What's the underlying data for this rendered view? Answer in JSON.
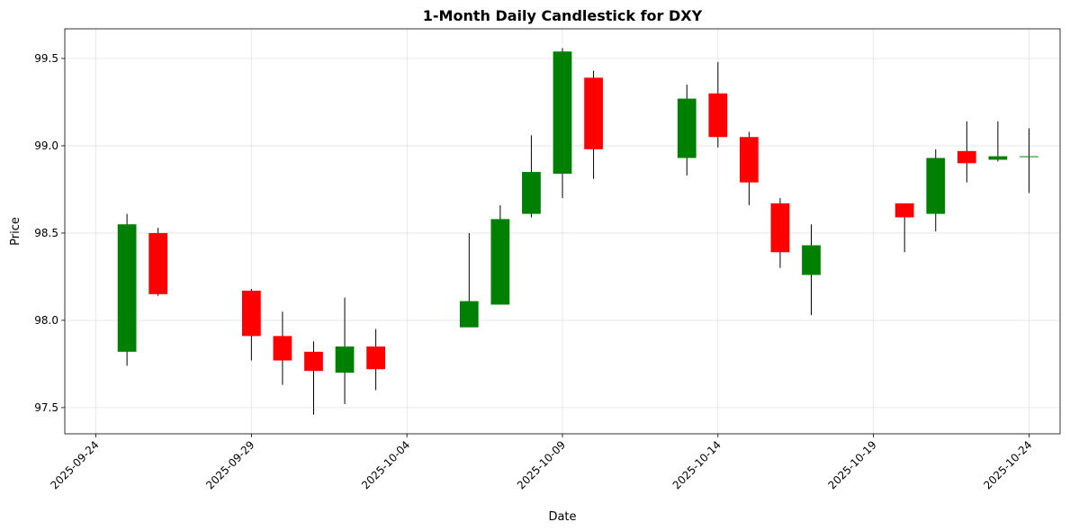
{
  "chart_data": {
    "type": "candlestick",
    "title": "1-Month Daily Candlestick for DXY",
    "xlabel": "Date",
    "ylabel": "Price",
    "grid": true,
    "up_color": "#008000",
    "down_color": "#ff0000",
    "wick_color": "#000000",
    "x_range": [
      "2025-09-23",
      "2025-10-25"
    ],
    "ylim": [
      97.35,
      99.67
    ],
    "xticks": [
      "2025-09-24",
      "2025-09-29",
      "2025-10-04",
      "2025-10-09",
      "2025-10-14",
      "2025-10-19",
      "2025-10-24"
    ],
    "yticks": [
      97.5,
      98.0,
      98.5,
      99.0,
      99.5
    ],
    "candles": [
      {
        "date": "2025-09-25",
        "open": 97.82,
        "high": 98.61,
        "low": 97.74,
        "close": 98.55
      },
      {
        "date": "2025-09-26",
        "open": 98.5,
        "high": 98.53,
        "low": 98.14,
        "close": 98.15
      },
      {
        "date": "2025-09-29",
        "open": 98.17,
        "high": 98.18,
        "low": 97.77,
        "close": 97.91
      },
      {
        "date": "2025-09-30",
        "open": 97.91,
        "high": 98.05,
        "low": 97.63,
        "close": 97.77
      },
      {
        "date": "2025-10-01",
        "open": 97.82,
        "high": 97.88,
        "low": 97.46,
        "close": 97.71
      },
      {
        "date": "2025-10-02",
        "open": 97.7,
        "high": 98.13,
        "low": 97.52,
        "close": 97.85
      },
      {
        "date": "2025-10-03",
        "open": 97.85,
        "high": 97.95,
        "low": 97.6,
        "close": 97.72
      },
      {
        "date": "2025-10-06",
        "open": 97.96,
        "high": 98.5,
        "low": 97.96,
        "close": 98.11
      },
      {
        "date": "2025-10-07",
        "open": 98.09,
        "high": 98.66,
        "low": 98.09,
        "close": 98.58
      },
      {
        "date": "2025-10-08",
        "open": 98.61,
        "high": 99.06,
        "low": 98.59,
        "close": 98.85
      },
      {
        "date": "2025-10-09",
        "open": 98.84,
        "high": 99.56,
        "low": 98.7,
        "close": 99.54
      },
      {
        "date": "2025-10-10",
        "open": 99.39,
        "high": 99.43,
        "low": 98.81,
        "close": 98.98
      },
      {
        "date": "2025-10-13",
        "open": 98.93,
        "high": 99.35,
        "low": 98.83,
        "close": 99.27
      },
      {
        "date": "2025-10-14",
        "open": 99.3,
        "high": 99.48,
        "low": 98.99,
        "close": 99.05
      },
      {
        "date": "2025-10-15",
        "open": 99.05,
        "high": 99.08,
        "low": 98.66,
        "close": 98.79
      },
      {
        "date": "2025-10-16",
        "open": 98.67,
        "high": 98.7,
        "low": 98.3,
        "close": 98.39
      },
      {
        "date": "2025-10-17",
        "open": 98.26,
        "high": 98.55,
        "low": 98.03,
        "close": 98.43
      },
      {
        "date": "2025-10-20",
        "open": 98.67,
        "high": 98.67,
        "low": 98.39,
        "close": 98.59
      },
      {
        "date": "2025-10-21",
        "open": 98.61,
        "high": 98.98,
        "low": 98.51,
        "close": 98.93
      },
      {
        "date": "2025-10-22",
        "open": 98.97,
        "high": 99.14,
        "low": 98.79,
        "close": 98.9
      },
      {
        "date": "2025-10-23",
        "open": 98.92,
        "high": 99.14,
        "low": 98.91,
        "close": 98.94
      },
      {
        "date": "2025-10-24",
        "open": 98.94,
        "high": 99.1,
        "low": 98.73,
        "close": 98.94
      }
    ]
  }
}
